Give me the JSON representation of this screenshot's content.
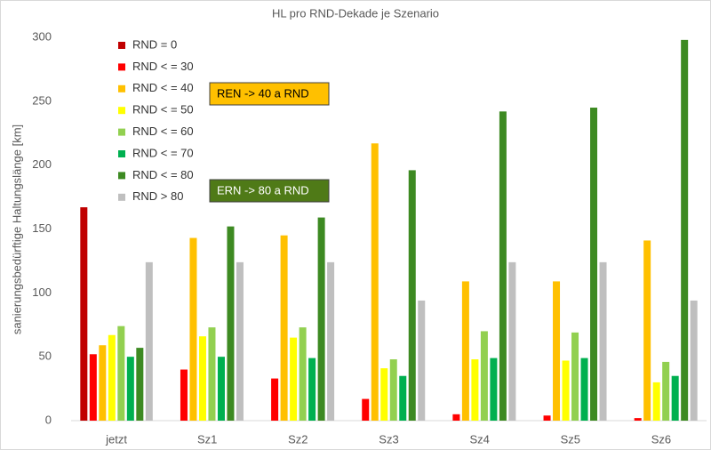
{
  "chart_data": {
    "type": "bar",
    "title": "HL pro RND-Dekade je Szenario",
    "y_label": "sanierungsbedürftige Haltungslänge [km]",
    "categories": [
      "jetzt",
      "Sz1",
      "Sz2",
      "Sz3",
      "Sz4",
      "Sz5",
      "Sz6"
    ],
    "series": [
      {
        "name": "RND = 0",
        "color": "#c00000",
        "values": [
          167,
          0,
          0,
          0,
          0,
          0,
          0
        ]
      },
      {
        "name": "RND < = 30",
        "color": "#ff0000",
        "values": [
          52,
          40,
          33,
          17,
          5,
          4,
          2
        ]
      },
      {
        "name": "RND < = 40",
        "color": "#ffc000",
        "values": [
          59,
          143,
          145,
          217,
          109,
          109,
          141
        ]
      },
      {
        "name": "RND < = 50",
        "color": "#ffff00",
        "values": [
          67,
          66,
          65,
          41,
          48,
          47,
          30
        ]
      },
      {
        "name": "RND < = 60",
        "color": "#92d050",
        "values": [
          74,
          73,
          73,
          48,
          70,
          69,
          46
        ]
      },
      {
        "name": "RND < = 70",
        "color": "#00b050",
        "values": [
          50,
          50,
          49,
          35,
          49,
          49,
          35
        ]
      },
      {
        "name": "RND < = 80",
        "color": "#3d8a22",
        "values": [
          57,
          152,
          159,
          196,
          242,
          245,
          298
        ]
      },
      {
        "name": "RND > 80",
        "color": "#bfbfbf",
        "values": [
          124,
          124,
          124,
          94,
          124,
          124,
          94
        ]
      }
    ],
    "ylim": [
      0,
      300
    ],
    "yticks": [
      0,
      50,
      100,
      150,
      200,
      250,
      300
    ],
    "grid": false,
    "legend_position": "upper left",
    "annotations": [
      {
        "text": "REN -> 40 a RND",
        "color": "#ffc000",
        "text_color": "#000000"
      },
      {
        "text": "ERN -> 80 a RND",
        "color": "#4f7a17",
        "text_color": "#ffffff"
      }
    ]
  }
}
